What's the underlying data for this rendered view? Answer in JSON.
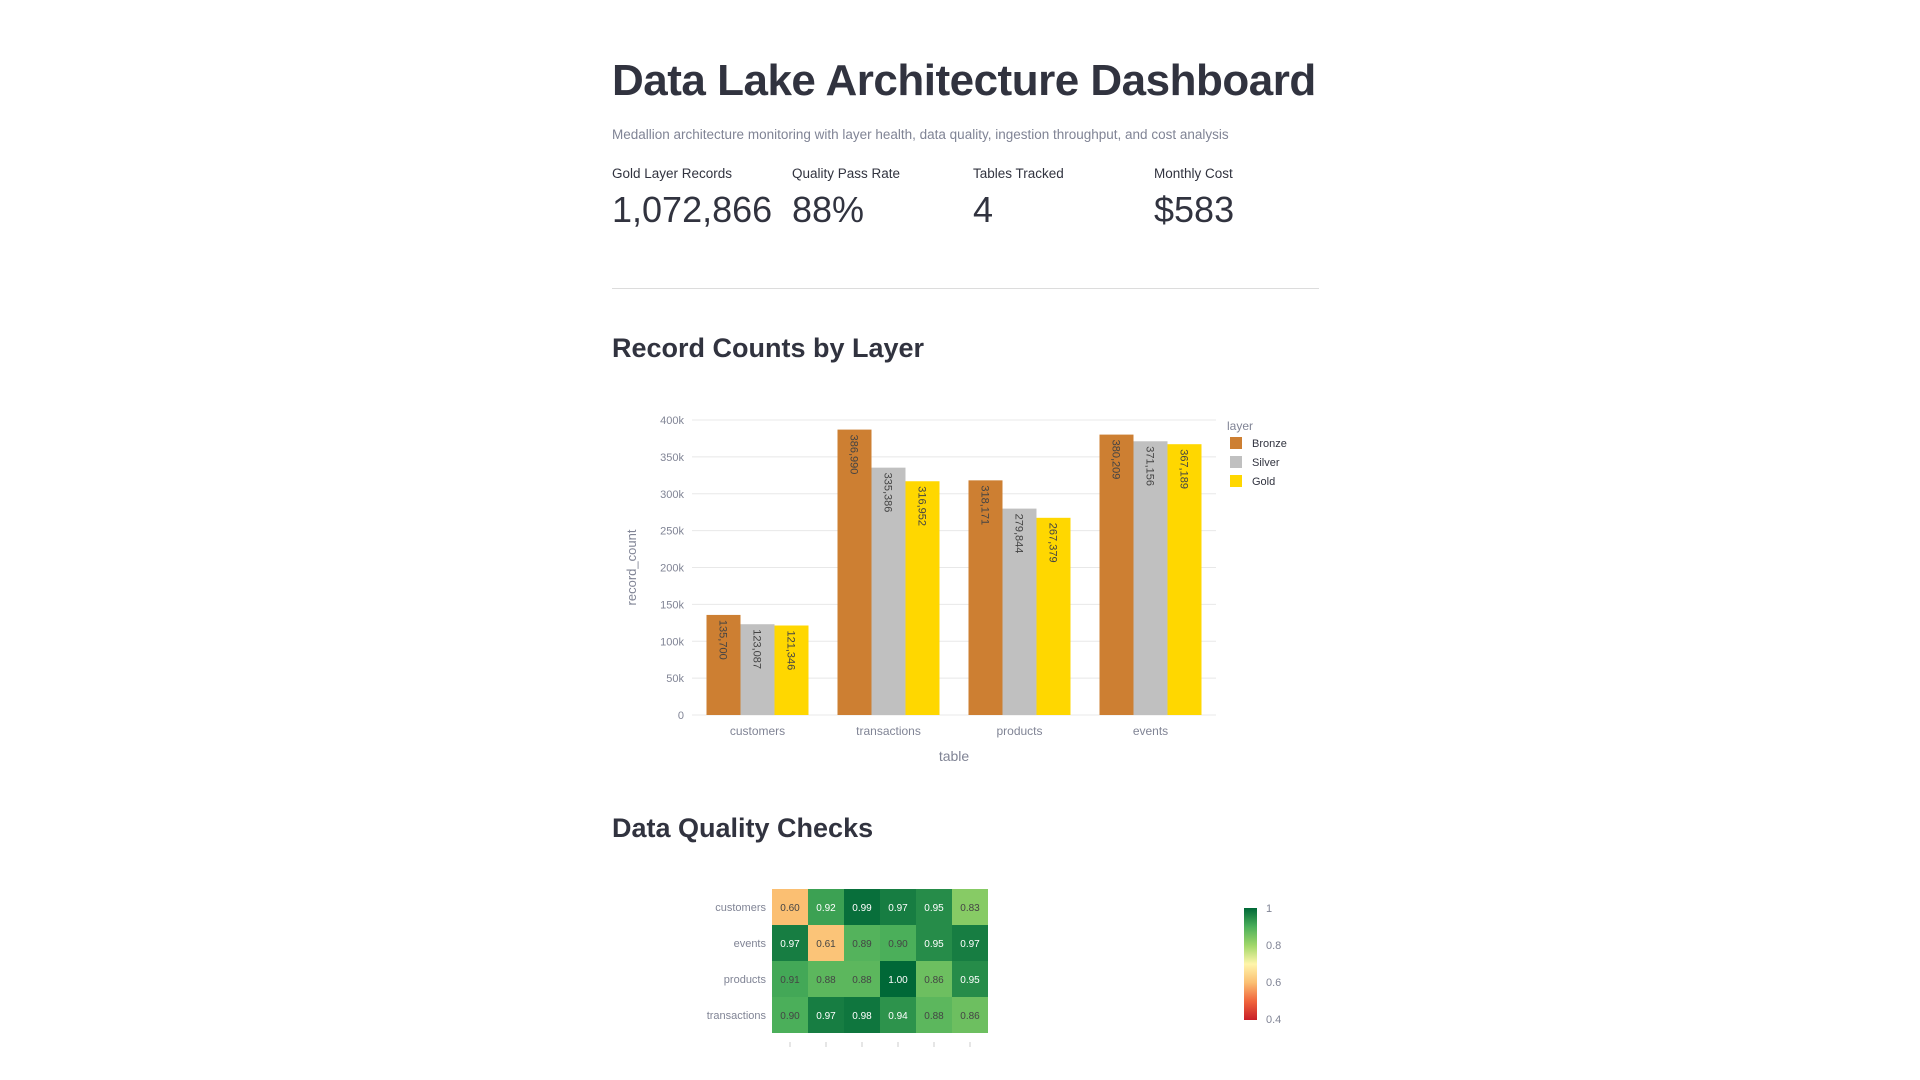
{
  "header": {
    "title": "Data Lake Architecture Dashboard",
    "subtitle": "Medallion architecture monitoring with layer health, data quality, ingestion throughput, and cost analysis"
  },
  "metrics": [
    {
      "label": "Gold Layer Records",
      "value": "1,072,866"
    },
    {
      "label": "Quality Pass Rate",
      "value": "88%"
    },
    {
      "label": "Tables Tracked",
      "value": "4"
    },
    {
      "label": "Monthly Cost",
      "value": "$583"
    }
  ],
  "sections": {
    "records": "Record Counts by Layer",
    "quality": "Data Quality Checks"
  },
  "chart_data": [
    {
      "type": "bar",
      "xlabel": "table",
      "ylabel": "record_count",
      "ylim": [
        0,
        400000
      ],
      "yticks": [
        0,
        50000,
        100000,
        150000,
        200000,
        250000,
        300000,
        350000,
        400000
      ],
      "ytick_labels": [
        "0",
        "50k",
        "100k",
        "150k",
        "200k",
        "250k",
        "300k",
        "350k",
        "400k"
      ],
      "grid": true,
      "legend_title": "layer",
      "legend_position": "right",
      "categories": [
        "customers",
        "transactions",
        "products",
        "events"
      ],
      "series": [
        {
          "name": "Bronze",
          "color": "#CD7F32",
          "values": [
            135700,
            386990,
            318171,
            380209
          ],
          "labels": [
            "135,700",
            "386,990",
            "318,171",
            "380,209"
          ]
        },
        {
          "name": "Silver",
          "color": "#C0C0C0",
          "values": [
            123087,
            335386,
            279844,
            371156
          ],
          "labels": [
            "123,087",
            "335,386",
            "279,844",
            "371,156"
          ]
        },
        {
          "name": "Gold",
          "color": "#FFD700",
          "values": [
            121346,
            316952,
            267379,
            367189
          ],
          "labels": [
            "121,346",
            "316,952",
            "267,379",
            "367,189"
          ]
        }
      ]
    },
    {
      "type": "heatmap",
      "rows": [
        "customers",
        "events",
        "products",
        "transactions"
      ],
      "values": [
        [
          0.6,
          0.92,
          0.99,
          0.97,
          0.95,
          0.83
        ],
        [
          0.97,
          0.61,
          0.89,
          0.9,
          0.95,
          0.97
        ],
        [
          0.91,
          0.88,
          0.88,
          1.0,
          0.86,
          0.95
        ],
        [
          0.9,
          0.97,
          0.98,
          0.94,
          0.88,
          0.86
        ]
      ],
      "colorscale": "RdYlGn",
      "zlim": [
        0.4,
        1
      ],
      "colorbar_ticks": [
        "1",
        "0.8",
        "0.6",
        "0.4"
      ]
    }
  ]
}
